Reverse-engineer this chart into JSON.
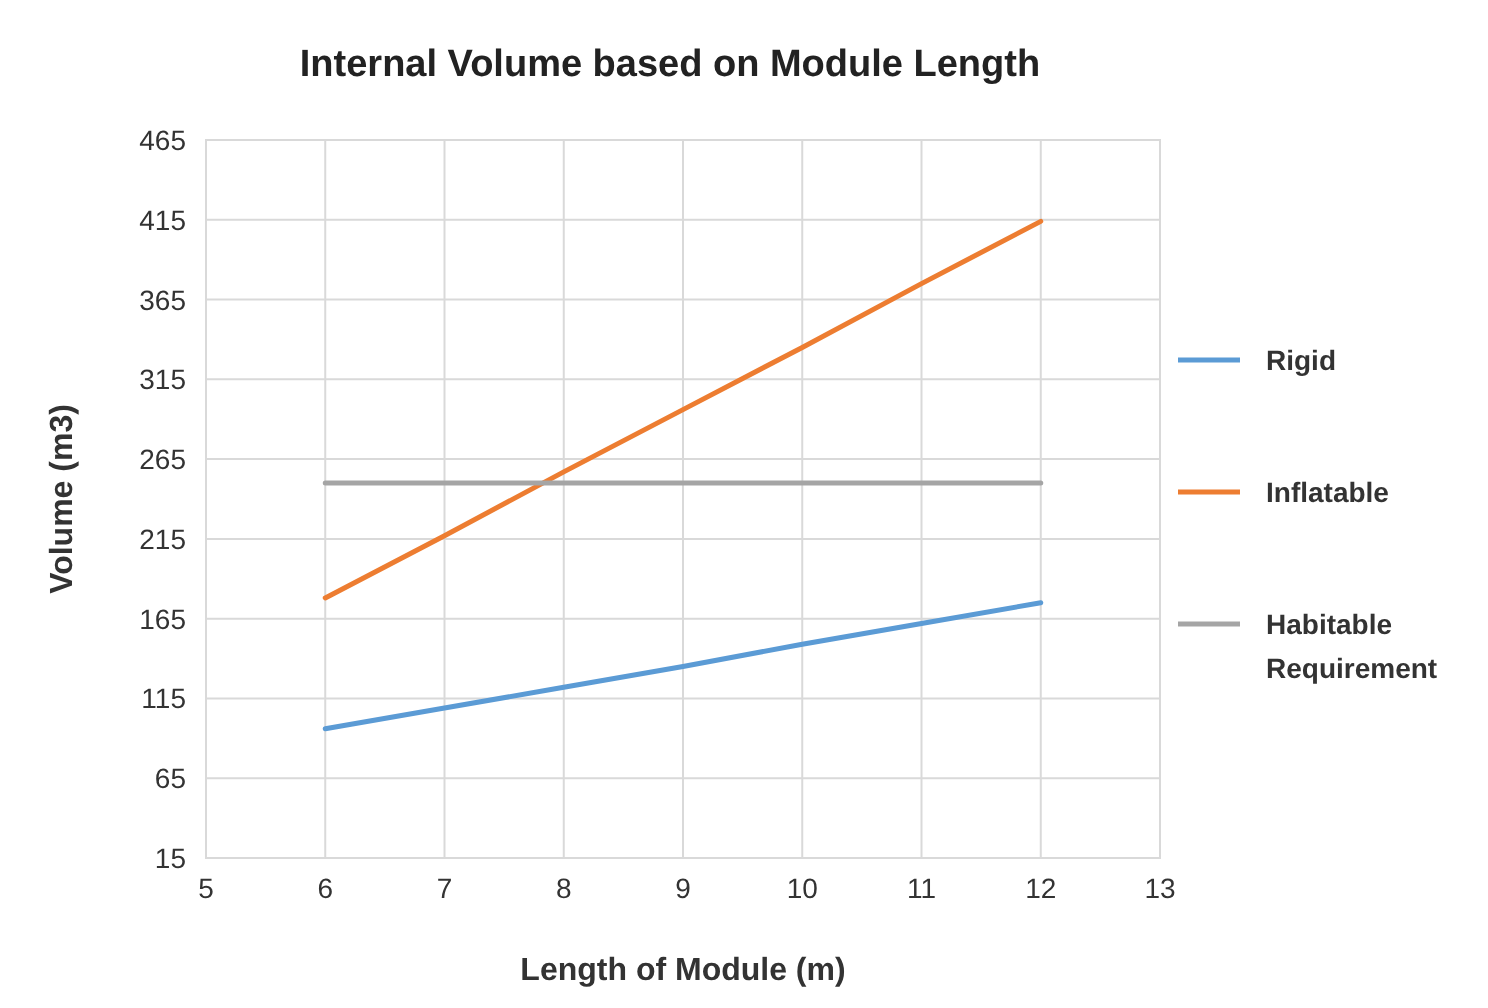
{
  "chart_data": {
    "type": "line",
    "title": "Internal Volume based on Module Length",
    "xlabel": "Length of Module (m)",
    "ylabel": "Volume (m3)",
    "x": [
      6,
      7,
      8,
      9,
      10,
      11,
      12
    ],
    "series": [
      {
        "name": "Rigid",
        "color": "#5b9bd5",
        "values": [
          96,
          109,
          122,
          135,
          149,
          162,
          175
        ]
      },
      {
        "name": "Inflatable",
        "color": "#ed7d31",
        "values": [
          178,
          217,
          257,
          296,
          335,
          375,
          414
        ]
      },
      {
        "name": "Habitable Requirement",
        "color": "#a5a5a5",
        "values": [
          250,
          250,
          250,
          250,
          250,
          250,
          250
        ]
      }
    ],
    "xlim": [
      5,
      13
    ],
    "xticks": [
      5,
      6,
      7,
      8,
      9,
      10,
      11,
      12,
      13
    ],
    "ylim": [
      15,
      465
    ],
    "yticks": [
      15,
      65,
      115,
      165,
      215,
      265,
      315,
      365,
      415,
      465
    ],
    "grid": true,
    "legend": "right",
    "marker": "none",
    "line_style": "solid"
  }
}
